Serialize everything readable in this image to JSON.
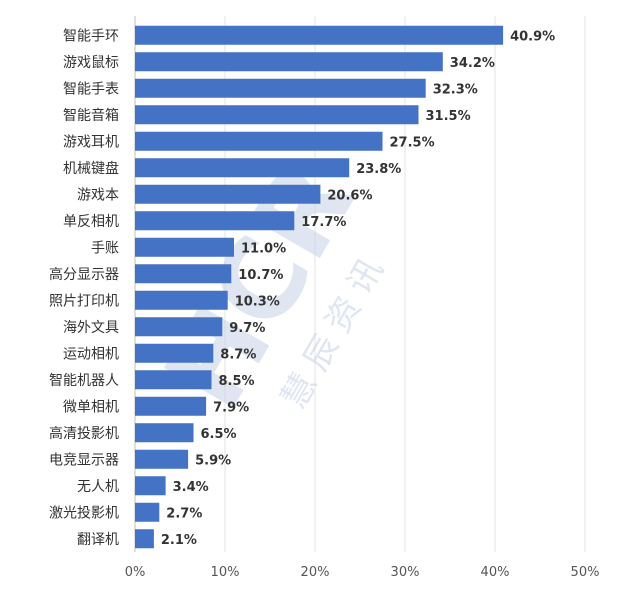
{
  "chart_data": {
    "type": "bar",
    "orientation": "horizontal",
    "categories": [
      "智能手环",
      "游戏鼠标",
      "智能手表",
      "智能音箱",
      "游戏耳机",
      "机械键盘",
      "游戏本",
      "单反相机",
      "手账",
      "高分显示器",
      "照片打印机",
      "海外文具",
      "运动相机",
      "智能机器人",
      "微单相机",
      "高清投影机",
      "电竞显示器",
      "无人机",
      "激光投影机",
      "翻译机"
    ],
    "values": [
      40.9,
      34.2,
      32.3,
      31.5,
      27.5,
      23.8,
      20.6,
      17.7,
      11.0,
      10.7,
      10.3,
      9.7,
      8.7,
      8.5,
      7.9,
      6.5,
      5.9,
      3.4,
      2.7,
      2.1
    ],
    "value_labels": [
      "40.9%",
      "34.2%",
      "32.3%",
      "31.5%",
      "27.5%",
      "23.8%",
      "20.6%",
      "17.7%",
      "11.0%",
      "10.7%",
      "10.3%",
      "9.7%",
      "8.7%",
      "8.5%",
      "7.9%",
      "6.5%",
      "5.9%",
      "3.4%",
      "2.7%",
      "2.1%"
    ],
    "xlim": [
      0,
      50
    ],
    "x_ticks": [
      "0%",
      "10%",
      "20%",
      "30%",
      "40%",
      "50%"
    ],
    "grid": "vertical",
    "bar_color": "#4472C4",
    "title": "",
    "xlabel": "",
    "ylabel": ""
  },
  "watermark": {
    "logo_text": "HCR",
    "text": "慧辰资讯",
    "color": "#c8d3e6"
  }
}
